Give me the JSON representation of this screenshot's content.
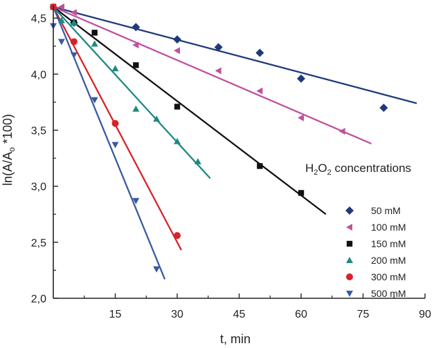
{
  "chart_data": {
    "type": "scatter",
    "title": "",
    "xlabel": "t, min",
    "ylabel": "ln(A/A₀ *100)",
    "ylabel_parts": {
      "main": "ln(A/A",
      "sub": "o",
      "tail": " *100)"
    },
    "xlim": [
      0,
      90
    ],
    "ylim": [
      2.0,
      4.6
    ],
    "x_ticks": [
      15,
      30,
      45,
      60,
      75,
      90
    ],
    "y_ticks": [
      2.0,
      2.5,
      3.0,
      3.5,
      4.0,
      4.5
    ],
    "x_tick_labels": [
      "15",
      "30",
      "45",
      "60",
      "75",
      "90"
    ],
    "y_tick_labels": [
      "2,0",
      "2,5",
      "3,0",
      "3,5",
      "4,0",
      "4,5"
    ],
    "grid": false,
    "legend": {
      "position": "right",
      "title": "H₂O₂ concentrations",
      "title_parts": {
        "a": "H",
        "b": "2",
        "c": "O",
        "d": "2",
        "e": " concentrations"
      }
    },
    "series": [
      {
        "name": "50 mM",
        "color": "#1f3a7a",
        "marker": "diamond",
        "x": [
          5,
          20,
          30,
          40,
          50,
          60,
          80
        ],
        "y": [
          4.46,
          4.42,
          4.31,
          4.24,
          4.19,
          3.96,
          3.7
        ],
        "fit": {
          "x": [
            0,
            88
          ],
          "y": [
            4.6,
            3.74
          ]
        }
      },
      {
        "name": "100 mM",
        "color": "#c0509e",
        "marker": "triangle-left",
        "x": [
          0,
          2,
          5,
          20,
          30,
          40,
          50,
          60,
          70
        ],
        "y": [
          4.6,
          4.6,
          4.55,
          4.26,
          4.21,
          4.03,
          3.85,
          3.61,
          3.49
        ],
        "fit": {
          "x": [
            0,
            77
          ],
          "y": [
            4.6,
            3.38
          ]
        }
      },
      {
        "name": "150 mM",
        "color": "#111111",
        "marker": "square",
        "x": [
          0,
          5,
          10,
          20,
          30,
          50,
          60
        ],
        "y": [
          4.6,
          4.46,
          4.37,
          4.08,
          3.71,
          3.18,
          2.94
        ],
        "fit": {
          "x": [
            0,
            66
          ],
          "y": [
            4.6,
            2.75
          ]
        }
      },
      {
        "name": "200 mM",
        "color": "#1e8a80",
        "marker": "triangle-up",
        "x": [
          0,
          2,
          5,
          10,
          15,
          20,
          25,
          30,
          35
        ],
        "y": [
          4.6,
          4.48,
          4.46,
          4.27,
          4.05,
          3.69,
          3.6,
          3.4,
          3.22
        ],
        "fit": {
          "x": [
            0,
            38
          ],
          "y": [
            4.6,
            3.07
          ]
        }
      },
      {
        "name": "300 mM",
        "color": "#d8222a",
        "marker": "circle",
        "x": [
          0,
          5,
          15,
          30
        ],
        "y": [
          4.6,
          4.29,
          3.56,
          2.56
        ],
        "fit": {
          "x": [
            0,
            31
          ],
          "y": [
            4.6,
            2.43
          ]
        }
      },
      {
        "name": "500 mM",
        "color": "#3a5aa0",
        "marker": "triangle-down",
        "x": [
          0,
          2,
          5,
          10,
          15,
          20,
          25
        ],
        "y": [
          4.43,
          4.29,
          4.17,
          3.77,
          3.37,
          2.87,
          2.26
        ],
        "fit": {
          "x": [
            0,
            27
          ],
          "y": [
            4.6,
            2.17
          ]
        }
      }
    ]
  }
}
